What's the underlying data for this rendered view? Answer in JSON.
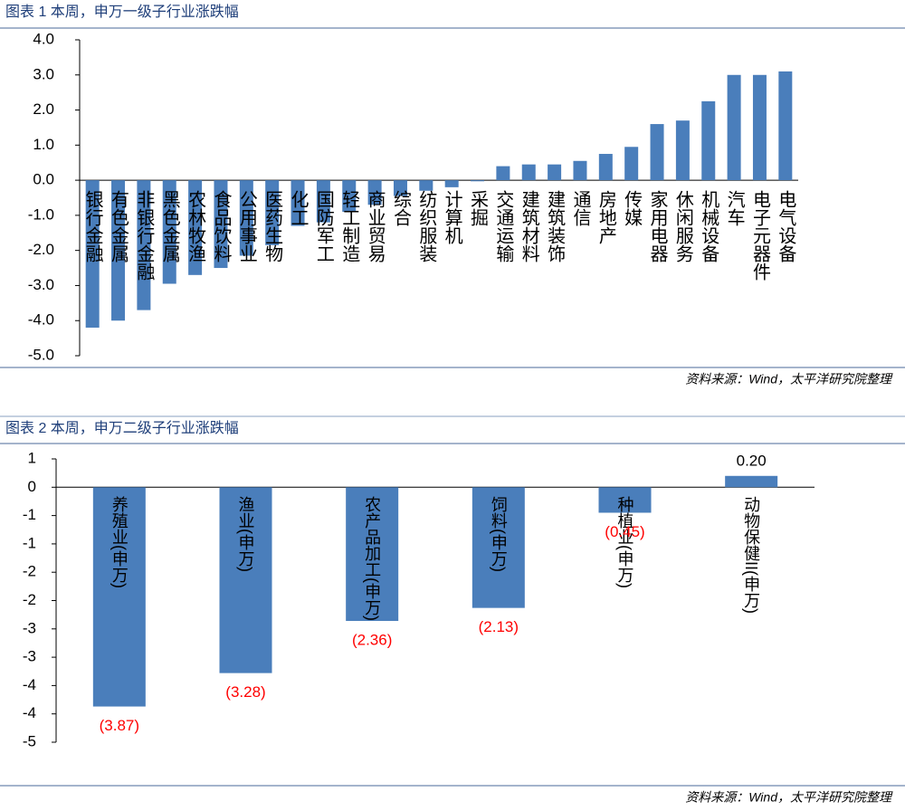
{
  "chart_data": [
    {
      "type": "bar",
      "title": "图表 1 本周，申万一级子行业涨跌幅",
      "source": "资料来源：Wind，太平洋研究院整理",
      "color": "#4a7ebb",
      "categories": [
        "银行金融",
        "有色金属",
        "非银行金融",
        "黑色金属",
        "农林牧渔",
        "食品饮料",
        "公用事业",
        "医药生物",
        "化工",
        "国防军工",
        "轻工制造",
        "商业贸易",
        "综合",
        "纺织服装",
        "计算机",
        "采掘",
        "交通运输",
        "建筑材料",
        "建筑装饰",
        "通信",
        "房地产",
        "传媒",
        "家用电器",
        "休闲服务",
        "机械设备",
        "汽车",
        "电子元器件",
        "电气设备"
      ],
      "values": [
        -4.2,
        -4.0,
        -3.7,
        -2.95,
        -2.7,
        -2.5,
        -2.15,
        -1.85,
        -1.3,
        -1.2,
        -0.9,
        -0.7,
        -0.45,
        -0.3,
        -0.2,
        -0.03,
        0.4,
        0.45,
        0.45,
        0.55,
        0.75,
        0.95,
        1.6,
        1.7,
        2.25,
        3.0,
        3.0,
        3.1
      ],
      "ylim": [
        -5,
        4
      ],
      "yticks": [
        {
          "value": 4,
          "label": "4.0"
        },
        {
          "value": 3,
          "label": "3.0"
        },
        {
          "value": 2,
          "label": "2.0"
        },
        {
          "value": 1,
          "label": "1.0"
        },
        {
          "value": 0,
          "label": "0.0"
        },
        {
          "value": -1,
          "label": "-1.0"
        },
        {
          "value": -2,
          "label": "-2.0"
        },
        {
          "value": -3,
          "label": "-3.0"
        },
        {
          "value": -4,
          "label": "-4.0"
        },
        {
          "value": -5,
          "label": "-5.0"
        }
      ]
    },
    {
      "type": "bar",
      "title": "图表 2 本周，申万二级子行业涨跌幅",
      "source": "资料来源：Wind，太平洋研究院整理",
      "color": "#4a7ebb",
      "categories": [
        "养殖业(申万)",
        "渔业(申万)",
        "农产品加工(申万)",
        "饲料(申万)",
        "种植业(申万)",
        "动物保健II(申万)"
      ],
      "values": [
        -3.87,
        -3.28,
        -2.36,
        -2.13,
        -0.45,
        0.2
      ],
      "value_labels": [
        "(3.87)",
        "(3.28)",
        "(2.36)",
        "(2.13)",
        "(0.45)",
        "0.20"
      ],
      "ylim": [
        -4.5,
        0.5
      ],
      "yticks": [
        {
          "value": 0.5,
          "label": "1"
        },
        0,
        {
          "value": -0.5,
          "label": "-1"
        },
        {
          "value": -1,
          "label": "-1"
        },
        {
          "value": -1.5,
          "label": "-2"
        },
        {
          "value": -2,
          "label": "-2"
        },
        {
          "value": -2.5,
          "label": "-3"
        },
        {
          "value": -3,
          "label": "-3"
        },
        {
          "value": -3.5,
          "label": "-4"
        },
        {
          "value": -4,
          "label": "-4"
        },
        {
          "value": -4.5,
          "label": "-5"
        }
      ]
    }
  ]
}
